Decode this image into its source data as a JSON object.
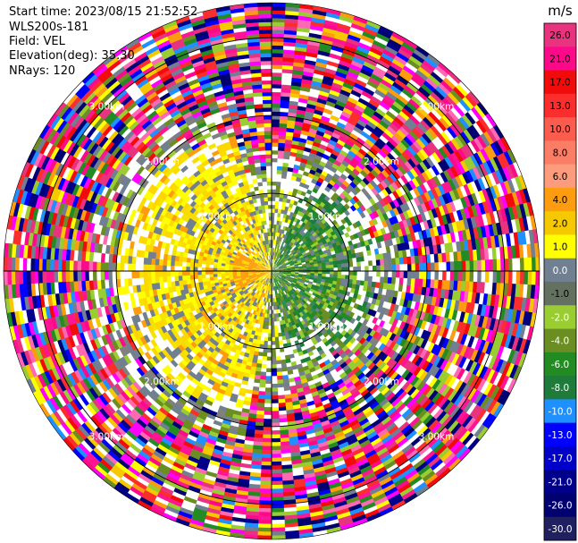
{
  "header": {
    "start_time": "Start time: 2023/08/15 21:52:52",
    "instrument": "WLS200s-181",
    "field": "Field: VEL",
    "elevation": "Elevation(deg): 35.30",
    "nrays": "NRays: 120"
  },
  "chart_data": {
    "type": "heatmap",
    "subtype": "polar-ppi",
    "field": "VEL",
    "units": "m/s",
    "n_rays": 120,
    "range_rings_km": [
      1.0,
      2.0,
      3.0
    ],
    "range_ring_labels": [
      "1.00km",
      "2.00km",
      "3.00km"
    ],
    "label_bearings_deg": [
      45,
      135,
      225,
      315
    ],
    "colorbar": {
      "label": "m/s",
      "ticks": [
        "26.0",
        "21.0",
        "17.0",
        "13.0",
        "10.0",
        "8.0",
        "6.0",
        "4.0",
        "2.0",
        "1.0",
        "0.0",
        "-1.0",
        "-2.0",
        "-4.0",
        "-6.0",
        "-8.0",
        "-10.0",
        "-13.0",
        "-17.0",
        "-21.0",
        "-26.0",
        "-30.0"
      ],
      "colors": [
        "#e8337f",
        "#fc0a8a",
        "#f20b0b",
        "#fb2d2d",
        "#fc5c4d",
        "#fb7d66",
        "#fc9c7c",
        "#fc9c0e",
        "#f5c800",
        "#ffff00",
        "#708090",
        "#647060",
        "#9acd32",
        "#6b8e23",
        "#228b22",
        "#1e7b3a",
        "#1e90ff",
        "#0000ff",
        "#0000c8",
        "#00008b",
        "#000070",
        "#202060"
      ],
      "range": [
        -30.0,
        30.0
      ]
    },
    "pattern": {
      "inner_east": "green (approaching, -4 to -8 m/s)",
      "inner_west": "yellow/orange (receding, 2 to 6 m/s)",
      "outer": "noisy multicolor (no valid data)"
    }
  }
}
